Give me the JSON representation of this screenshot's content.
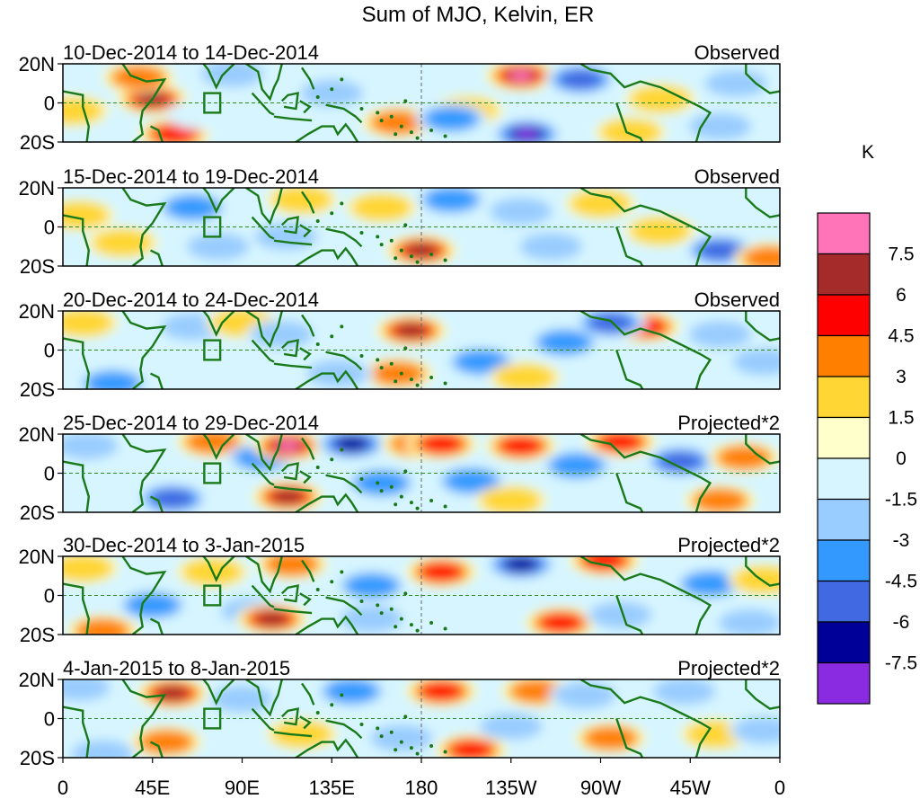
{
  "chart_data": {
    "type": "heatmap",
    "title": "Sum of MJO, Kelvin, ER",
    "units": "K",
    "x_ticks": [
      "0",
      "45E",
      "90E",
      "135E",
      "180",
      "135W",
      "90W",
      "45W",
      "0"
    ],
    "y_ticks": [
      "20N",
      "0",
      "20S"
    ],
    "xlim": [
      0,
      360
    ],
    "ylim": [
      -20,
      20
    ],
    "colorbar": {
      "labels": [
        "7.5",
        "6",
        "4.5",
        "3",
        "1.5",
        "0",
        "-1.5",
        "-3",
        "-4.5",
        "-6",
        "-7.5"
      ],
      "colors": [
        "#ff73b9",
        "#a52a2a",
        "#ff0000",
        "#ff7f00",
        "#ffd633",
        "#ffffcc",
        "#d6f5ff",
        "#99ccff",
        "#3399ff",
        "#4169e1",
        "#000099",
        "#8a2be2"
      ]
    },
    "panels": [
      {
        "date_range": "10-Dec-2014 to 14-Dec-2014",
        "status": "Observed",
        "features": [
          {
            "lon": 45,
            "lat": 2,
            "value": 6.3
          },
          {
            "lon": 38,
            "lat": 13,
            "value": 4.0
          },
          {
            "lon": 56,
            "lat": -16,
            "value": 4.6
          },
          {
            "lon": 5,
            "lat": -4,
            "value": 2.4
          },
          {
            "lon": 85,
            "lat": 15,
            "value": -2.6
          },
          {
            "lon": 70,
            "lat": -6,
            "value": -1.4
          },
          {
            "lon": 168,
            "lat": -10,
            "value": 3.8
          },
          {
            "lon": 135,
            "lat": 5,
            "value": -1.8
          },
          {
            "lon": 203,
            "lat": -4,
            "value": 3.0
          },
          {
            "lon": 230,
            "lat": 14,
            "value": 8.2
          },
          {
            "lon": 260,
            "lat": 12,
            "value": -5.5
          },
          {
            "lon": 233,
            "lat": -16,
            "value": -7.8
          },
          {
            "lon": 195,
            "lat": -8,
            "value": -3.2
          },
          {
            "lon": 300,
            "lat": 2,
            "value": 2.4
          },
          {
            "lon": 338,
            "lat": 10,
            "value": -2.8
          },
          {
            "lon": 330,
            "lat": -12,
            "value": -2.2
          },
          {
            "lon": 285,
            "lat": -15,
            "value": 2.0
          }
        ]
      },
      {
        "date_range": "15-Dec-2014 to 19-Dec-2014",
        "status": "Observed",
        "features": [
          {
            "lon": 8,
            "lat": 6,
            "value": 2.8
          },
          {
            "lon": 30,
            "lat": -8,
            "value": 2.6
          },
          {
            "lon": 65,
            "lat": 10,
            "value": -3.2
          },
          {
            "lon": 78,
            "lat": -10,
            "value": -2.6
          },
          {
            "lon": 120,
            "lat": 14,
            "value": 1.8
          },
          {
            "lon": 112,
            "lat": -5,
            "value": -1.6
          },
          {
            "lon": 160,
            "lat": 10,
            "value": 2.2
          },
          {
            "lon": 180,
            "lat": -12,
            "value": 6.4
          },
          {
            "lon": 195,
            "lat": 14,
            "value": -3.4
          },
          {
            "lon": 230,
            "lat": 8,
            "value": -2.8
          },
          {
            "lon": 245,
            "lat": -10,
            "value": -2.6
          },
          {
            "lon": 270,
            "lat": 12,
            "value": 1.8
          },
          {
            "lon": 330,
            "lat": -12,
            "value": -6.0
          },
          {
            "lon": 300,
            "lat": -2,
            "value": 1.6
          },
          {
            "lon": 355,
            "lat": -16,
            "value": 3.5
          }
        ]
      },
      {
        "date_range": "20-Dec-2014 to 24-Dec-2014",
        "status": "Observed",
        "features": [
          {
            "lon": 10,
            "lat": 14,
            "value": 2.4
          },
          {
            "lon": 25,
            "lat": -17,
            "value": -4.0
          },
          {
            "lon": 65,
            "lat": 12,
            "value": -2.8
          },
          {
            "lon": 90,
            "lat": 14,
            "value": 2.6
          },
          {
            "lon": 110,
            "lat": 8,
            "value": -3.0
          },
          {
            "lon": 175,
            "lat": 10,
            "value": 6.8
          },
          {
            "lon": 168,
            "lat": -12,
            "value": 3.6
          },
          {
            "lon": 138,
            "lat": -12,
            "value": -2.6
          },
          {
            "lon": 210,
            "lat": -6,
            "value": -4.0
          },
          {
            "lon": 252,
            "lat": 4,
            "value": -3.6
          },
          {
            "lon": 292,
            "lat": 12,
            "value": 5.2
          },
          {
            "lon": 275,
            "lat": 14,
            "value": -5.8
          },
          {
            "lon": 330,
            "lat": 8,
            "value": -3.0
          },
          {
            "lon": 352,
            "lat": -6,
            "value": -2.8
          },
          {
            "lon": 232,
            "lat": -14,
            "value": 1.8
          }
        ]
      },
      {
        "date_range": "25-Dec-2014 to 29-Dec-2014",
        "status": "Projected*2",
        "features": [
          {
            "lon": 12,
            "lat": 14,
            "value": -2.4
          },
          {
            "lon": 55,
            "lat": -13,
            "value": -5.0
          },
          {
            "lon": 75,
            "lat": 16,
            "value": 3.6
          },
          {
            "lon": 100,
            "lat": 8,
            "value": -3.6
          },
          {
            "lon": 113,
            "lat": 14,
            "value": 7.8
          },
          {
            "lon": 113,
            "lat": -12,
            "value": 7.4
          },
          {
            "lon": 145,
            "lat": 15,
            "value": -6.2
          },
          {
            "lon": 160,
            "lat": -5,
            "value": -3.4
          },
          {
            "lon": 178,
            "lat": 15,
            "value": 3.5
          },
          {
            "lon": 190,
            "lat": 15,
            "value": 4.8
          },
          {
            "lon": 205,
            "lat": -4,
            "value": -3.6
          },
          {
            "lon": 230,
            "lat": 14,
            "value": 5.0
          },
          {
            "lon": 258,
            "lat": 4,
            "value": -4.0
          },
          {
            "lon": 280,
            "lat": 16,
            "value": 5.4
          },
          {
            "lon": 310,
            "lat": 6,
            "value": -5.8
          },
          {
            "lon": 342,
            "lat": 8,
            "value": 4.4
          },
          {
            "lon": 330,
            "lat": -14,
            "value": 3.4
          },
          {
            "lon": 225,
            "lat": -14,
            "value": 1.8
          }
        ]
      },
      {
        "date_range": "30-Dec-2014 to 3-Jan-2015",
        "status": "Projected*2",
        "features": [
          {
            "lon": 10,
            "lat": 14,
            "value": 2.6
          },
          {
            "lon": 20,
            "lat": -18,
            "value": 3.6
          },
          {
            "lon": 45,
            "lat": -5,
            "value": -3.2
          },
          {
            "lon": 75,
            "lat": 12,
            "value": 2.4
          },
          {
            "lon": 95,
            "lat": -8,
            "value": -3.0
          },
          {
            "lon": 115,
            "lat": 16,
            "value": 3.6
          },
          {
            "lon": 105,
            "lat": -12,
            "value": 6.8
          },
          {
            "lon": 155,
            "lat": 5,
            "value": -3.4
          },
          {
            "lon": 155,
            "lat": -12,
            "value": -2.4
          },
          {
            "lon": 190,
            "lat": 12,
            "value": 5.2
          },
          {
            "lon": 230,
            "lat": 16,
            "value": -6.4
          },
          {
            "lon": 272,
            "lat": 18,
            "value": 4.8
          },
          {
            "lon": 250,
            "lat": -14,
            "value": 5.4
          },
          {
            "lon": 280,
            "lat": -10,
            "value": -2.0
          },
          {
            "lon": 325,
            "lat": 6,
            "value": -3.6
          },
          {
            "lon": 352,
            "lat": 8,
            "value": 2.2
          },
          {
            "lon": 345,
            "lat": -14,
            "value": -2.8
          }
        ]
      },
      {
        "date_range": "4-Jan-2015 to 8-Jan-2015",
        "status": "Projected*2",
        "features": [
          {
            "lon": 8,
            "lat": 16,
            "value": -2.4
          },
          {
            "lon": 20,
            "lat": -18,
            "value": -3.0
          },
          {
            "lon": 52,
            "lat": -12,
            "value": 3.6
          },
          {
            "lon": 55,
            "lat": 13,
            "value": 6.4
          },
          {
            "lon": 90,
            "lat": 10,
            "value": -1.8
          },
          {
            "lon": 120,
            "lat": -8,
            "value": 2.6
          },
          {
            "lon": 145,
            "lat": 14,
            "value": -3.8
          },
          {
            "lon": 170,
            "lat": -10,
            "value": -2.0
          },
          {
            "lon": 190,
            "lat": 14,
            "value": 4.8
          },
          {
            "lon": 205,
            "lat": -16,
            "value": 6.0
          },
          {
            "lon": 225,
            "lat": -4,
            "value": -1.8
          },
          {
            "lon": 238,
            "lat": 14,
            "value": 3.2
          },
          {
            "lon": 262,
            "lat": 12,
            "value": -2.6
          },
          {
            "lon": 275,
            "lat": -10,
            "value": 3.2
          },
          {
            "lon": 328,
            "lat": -8,
            "value": 2.8
          },
          {
            "lon": 312,
            "lat": 14,
            "value": -2.0
          },
          {
            "lon": 352,
            "lat": -6,
            "value": -2.8
          }
        ]
      }
    ]
  }
}
